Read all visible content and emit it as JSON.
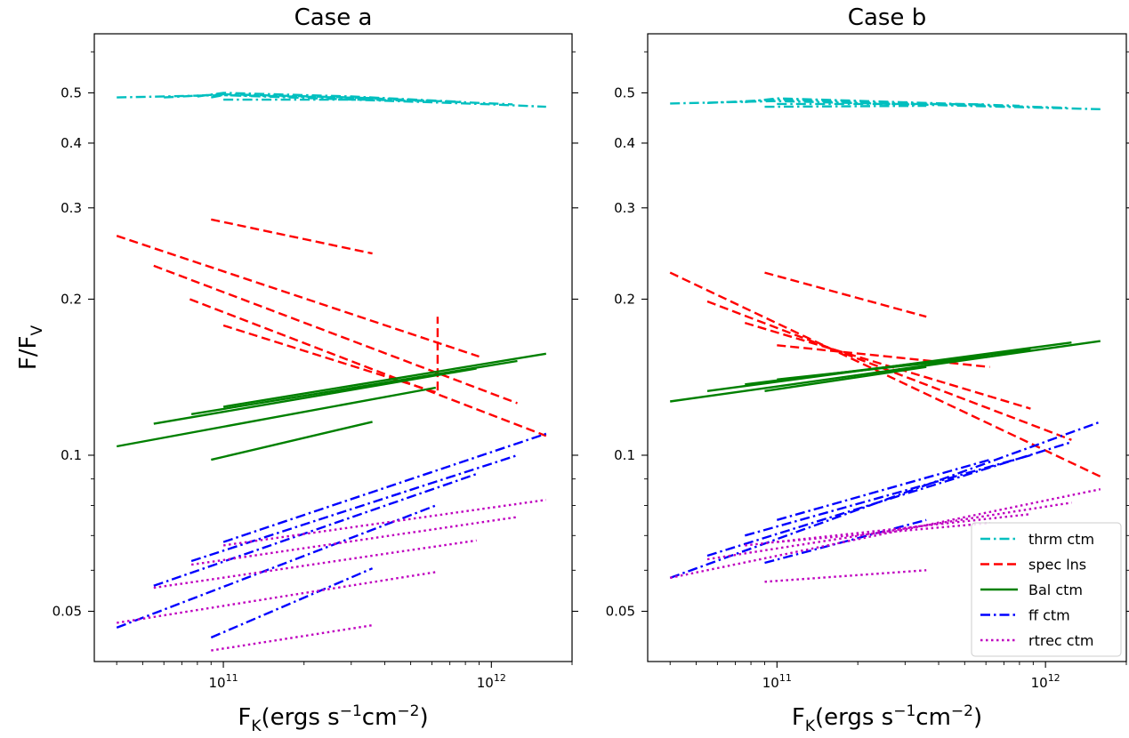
{
  "chart_data": {
    "type": "line",
    "x_scale": "log",
    "y_scale": "log",
    "xlabel": "F_K(ergs s^-1cm^-2)",
    "ylabel": "F/F_V",
    "xlim": [
      33000000000.0,
      2000000000000.0
    ],
    "ylim": [
      0.04,
      0.65
    ],
    "y_ticks": [
      0.05,
      0.1,
      0.2,
      0.3,
      0.4,
      0.5
    ],
    "y_tick_labels": [
      "0.05",
      "0.1",
      "0.2",
      "0.3",
      "0.4",
      "0.5"
    ],
    "x_ticks": [
      100000000000.0,
      1000000000000.0
    ],
    "x_tick_labels": [
      "10^11",
      "10^12"
    ],
    "legend": {
      "placement": "lower right",
      "panel": 1,
      "entries": [
        {
          "label": "thrm ctm",
          "color": "#00bfbf",
          "style": "dashdot"
        },
        {
          "label": "spec lns",
          "color": "#ff0000",
          "style": "dashed"
        },
        {
          "label": "Bal ctm",
          "color": "#008000",
          "style": "solid"
        },
        {
          "label": "ff ctm",
          "color": "#0000ff",
          "style": "dashdot"
        },
        {
          "label": "rtrec ctm",
          "color": "#bf00bf",
          "style": "dotted"
        }
      ]
    },
    "panels": [
      {
        "title": "Case a",
        "series": [
          {
            "group": "thrm ctm",
            "color": "#00bfbf",
            "style": "dashdot",
            "lines": [
              [
                [
                  40000000000.0,
                  0.49
                ],
                [
                  100000000000.0,
                  0.495
                ],
                [
                  1000000000000.0,
                  0.475
                ],
                [
                  1600000000000.0,
                  0.47
                ]
              ],
              [
                [
                  60000000000.0,
                  0.49
                ],
                [
                  100000000000.0,
                  0.497
                ],
                [
                  300000000000.0,
                  0.49
                ],
                [
                  1200000000000.0,
                  0.475
                ]
              ],
              [
                [
                  80000000000.0,
                  0.492
                ],
                [
                  100000000000.0,
                  0.5
                ],
                [
                  300000000000.0,
                  0.492
                ],
                [
                  800000000000.0,
                  0.48
                ]
              ],
              [
                [
                  90000000000.0,
                  0.49
                ],
                [
                  100000000000.0,
                  0.495
                ],
                [
                  400000000000.0,
                  0.488
                ]
              ],
              [
                [
                  100000000000.0,
                  0.485
                ],
                [
                  350000000000.0,
                  0.485
                ],
                [
                  600000000000.0,
                  0.482
                ]
              ]
            ]
          },
          {
            "group": "spec lns",
            "color": "#ff0000",
            "style": "dashed",
            "lines": [
              [
                [
                  40000000000.0,
                  0.265
                ],
                [
                  900000000000.0,
                  0.155
                ]
              ],
              [
                [
                  55000000000.0,
                  0.232
                ],
                [
                  1250000000000.0,
                  0.126
                ]
              ],
              [
                [
                  75000000000.0,
                  0.2
                ],
                [
                  1600000000000.0,
                  0.109
                ]
              ],
              [
                [
                  90000000000.0,
                  0.285
                ],
                [
                  360000000000.0,
                  0.245
                ]
              ],
              [
                [
                  100000000000.0,
                  0.178
                ],
                [
                  630000000000.0,
                  0.132
                ],
                [
                  630000000000.0,
                  0.185
                ]
              ]
            ]
          },
          {
            "group": "Bal ctm",
            "color": "#008000",
            "style": "solid",
            "lines": [
              [
                [
                  40000000000.0,
                  0.104
                ],
                [
                  620000000000.0,
                  0.135
                ]
              ],
              [
                [
                  55000000000.0,
                  0.115
                ],
                [
                  880000000000.0,
                  0.147
                ]
              ],
              [
                [
                  76000000000.0,
                  0.12
                ],
                [
                  1250000000000.0,
                  0.152
                ]
              ],
              [
                [
                  100000000000.0,
                  0.124
                ],
                [
                  1600000000000.0,
                  0.157
                ]
              ],
              [
                [
                  90000000000.0,
                  0.098
                ],
                [
                  360000000000.0,
                  0.116
                ]
              ]
            ]
          },
          {
            "group": "ff ctm",
            "color": "#0000ff",
            "style": "dashdot",
            "lines": [
              [
                [
                  40000000000.0,
                  0.0465
                ],
                [
                  620000000000.0,
                  0.08
                ]
              ],
              [
                [
                  55000000000.0,
                  0.056
                ],
                [
                  880000000000.0,
                  0.092
                ]
              ],
              [
                [
                  76000000000.0,
                  0.0625
                ],
                [
                  1250000000000.0,
                  0.1
                ]
              ],
              [
                [
                  100000000000.0,
                  0.068
                ],
                [
                  1600000000000.0,
                  0.11
                ]
              ],
              [
                [
                  90000000000.0,
                  0.0445
                ],
                [
                  360000000000.0,
                  0.0605
                ]
              ]
            ]
          },
          {
            "group": "rtrec ctm",
            "color": "#bf00bf",
            "style": "dotted",
            "lines": [
              [
                [
                  40000000000.0,
                  0.0475
                ],
                [
                  620000000000.0,
                  0.0595
                ]
              ],
              [
                [
                  55000000000.0,
                  0.0555
                ],
                [
                  880000000000.0,
                  0.0685
                ]
              ],
              [
                [
                  76000000000.0,
                  0.0615
                ],
                [
                  1250000000000.0,
                  0.076
                ]
              ],
              [
                [
                  100000000000.0,
                  0.067
                ],
                [
                  1600000000000.0,
                  0.082
                ]
              ],
              [
                [
                  90000000000.0,
                  0.042
                ],
                [
                  360000000000.0,
                  0.047
                ]
              ]
            ]
          }
        ]
      },
      {
        "title": "Case b",
        "series": [
          {
            "group": "thrm ctm",
            "color": "#00bfbf",
            "style": "dashdot",
            "lines": [
              [
                [
                  40000000000.0,
                  0.477
                ],
                [
                  100000000000.0,
                  0.482
                ],
                [
                  1600000000000.0,
                  0.465
                ]
              ],
              [
                [
                  55000000000.0,
                  0.478
                ],
                [
                  100000000000.0,
                  0.485
                ],
                [
                  1200000000000.0,
                  0.468
                ]
              ],
              [
                [
                  76000000000.0,
                  0.48
                ],
                [
                  100000000000.0,
                  0.488
                ],
                [
                  800000000000.0,
                  0.472
                ]
              ],
              [
                [
                  100000000000.0,
                  0.476
                ],
                [
                  360000000000.0,
                  0.476
                ],
                [
                  600000000000.0,
                  0.475
                ]
              ],
              [
                [
                  90000000000.0,
                  0.47
                ],
                [
                  360000000000.0,
                  0.472
                ]
              ]
            ]
          },
          {
            "group": "spec lns",
            "color": "#ff0000",
            "style": "dashed",
            "lines": [
              [
                [
                  40000000000.0,
                  0.225
                ],
                [
                  1600000000000.0,
                  0.091
                ]
              ],
              [
                [
                  55000000000.0,
                  0.198
                ],
                [
                  1250000000000.0,
                  0.107
                ]
              ],
              [
                [
                  76000000000.0,
                  0.18
                ],
                [
                  880000000000.0,
                  0.123
                ]
              ],
              [
                [
                  90000000000.0,
                  0.225
                ],
                [
                  360000000000.0,
                  0.185
                ]
              ],
              [
                [
                  100000000000.0,
                  0.163
                ],
                [
                  620000000000.0,
                  0.148
                ]
              ]
            ]
          },
          {
            "group": "Bal ctm",
            "color": "#008000",
            "style": "solid",
            "lines": [
              [
                [
                  40000000000.0,
                  0.127
                ],
                [
                  1600000000000.0,
                  0.166
                ]
              ],
              [
                [
                  55000000000.0,
                  0.133
                ],
                [
                  1250000000000.0,
                  0.165
                ]
              ],
              [
                [
                  76000000000.0,
                  0.137
                ],
                [
                  880000000000.0,
                  0.16
                ]
              ],
              [
                [
                  100000000000.0,
                  0.14
                ],
                [
                  620000000000.0,
                  0.155
                ]
              ],
              [
                [
                  90000000000.0,
                  0.133
                ],
                [
                  360000000000.0,
                  0.148
                ]
              ]
            ]
          },
          {
            "group": "ff ctm",
            "color": "#0000ff",
            "style": "dashdot",
            "lines": [
              [
                [
                  40000000000.0,
                  0.058
                ],
                [
                  1600000000000.0,
                  0.116
                ]
              ],
              [
                [
                  55000000000.0,
                  0.064
                ],
                [
                  1250000000000.0,
                  0.106
                ]
              ],
              [
                [
                  76000000000.0,
                  0.07
                ],
                [
                  880000000000.0,
                  0.1
                ]
              ],
              [
                [
                  100000000000.0,
                  0.075
                ],
                [
                  620000000000.0,
                  0.098
                ]
              ],
              [
                [
                  90000000000.0,
                  0.062
                ],
                [
                  360000000000.0,
                  0.075
                ]
              ]
            ]
          },
          {
            "group": "rtrec ctm",
            "color": "#bf00bf",
            "style": "dotted",
            "lines": [
              [
                [
                  40000000000.0,
                  0.058
                ],
                [
                  1600000000000.0,
                  0.086
                ]
              ],
              [
                [
                  55000000000.0,
                  0.063
                ],
                [
                  1250000000000.0,
                  0.081
                ]
              ],
              [
                [
                  76000000000.0,
                  0.067
                ],
                [
                  880000000000.0,
                  0.077
                ]
              ],
              [
                [
                  100000000000.0,
                  0.068
                ],
                [
                  620000000000.0,
                  0.074
                ]
              ],
              [
                [
                  90000000000.0,
                  0.057
                ],
                [
                  360000000000.0,
                  0.06
                ]
              ]
            ]
          }
        ]
      }
    ]
  }
}
